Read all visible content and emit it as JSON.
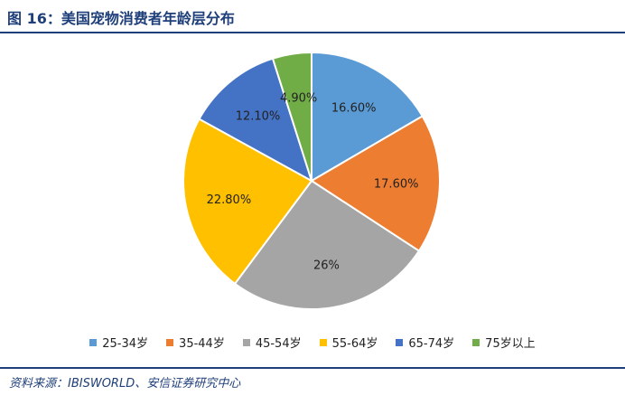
{
  "title": "图 16：美国宠物消费者年龄层分布",
  "source": "资料来源：IBISWORLD、安信证券研究中心",
  "colors": {
    "title": "#1f3f7a",
    "rule": "#1f3f7a"
  },
  "chart_data": {
    "type": "pie",
    "start": "12 o'clock, clockwise",
    "legend_position": "bottom",
    "slices": [
      {
        "label": "25-34岁",
        "value": 16.6,
        "text": "16.60%",
        "color": "#5b9bd5"
      },
      {
        "label": "35-44岁",
        "value": 17.6,
        "text": "17.60%",
        "color": "#ed7d31"
      },
      {
        "label": "45-54岁",
        "value": 26.0,
        "text": "26%",
        "color": "#a5a5a5"
      },
      {
        "label": "55-64岁",
        "value": 22.8,
        "text": "22.80%",
        "color": "#ffc000"
      },
      {
        "label": "65-74岁",
        "value": 12.1,
        "text": "12.10%",
        "color": "#4472c4"
      },
      {
        "label": "75岁以上",
        "value": 4.9,
        "text": "4.90%",
        "color": "#70ad47"
      }
    ]
  }
}
